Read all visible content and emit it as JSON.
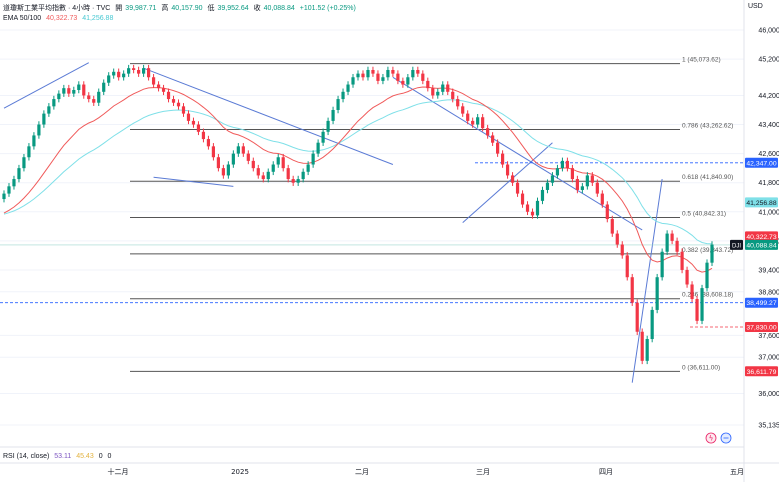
{
  "header": {
    "symbol": "道瓊斯工業平均指數 · 4小時 · TVC",
    "open_label": "開",
    "open": "39,987.71",
    "high_label": "高",
    "high": "40,157.90",
    "low_label": "低",
    "low": "39,952.64",
    "close_label": "收",
    "close": "40,088.84",
    "change": "+101.52 (+0.25%)",
    "ema_label": "EMA 50/100",
    "ema50": "40,322.73",
    "ema100": "41,256.88",
    "currency": "USD",
    "rsi_label": "RSI (14, close)",
    "rsi_value": "53.11",
    "rsi_ma": "45.43",
    "rsi_zero1": "0",
    "rsi_zero2": "0"
  },
  "colors": {
    "up": "#089981",
    "down": "#f23645",
    "ema50": "#f05a5a",
    "ema100": "#7fe0e8",
    "trend": "#5b7bd5",
    "fib": "#555555",
    "badge_dark": "#131722"
  },
  "chart_data": {
    "type": "candlestick",
    "title": "道瓊斯工業平均指數 · 4小時 · TVC",
    "y_ticks": [
      "46,000.00",
      "45,200.00",
      "44,200.00",
      "43,400.00",
      "42,600.00",
      "41,800.00",
      "41,000.00",
      "40,200.00",
      "39,400.00",
      "38,800.00",
      "37,600.00",
      "37,000.00",
      "36,000.00",
      "35,135.00"
    ],
    "x_ticks": [
      "十二月",
      "2025",
      "二月",
      "三月",
      "四月",
      "五月"
    ],
    "ylim": [
      35135,
      46000
    ],
    "fib_levels": [
      {
        "label": "1 (45,073.62)",
        "value": 45073.62
      },
      {
        "label": "0.786 (43,262.62)",
        "value": 43262.62
      },
      {
        "label": "0.618 (41,840.90)",
        "value": 41840.9
      },
      {
        "label": "0.5 (40,842.31)",
        "value": 40842.31
      },
      {
        "label": "0.382 (39,843.72)",
        "value": 39843.72
      },
      {
        "label": "0.236 (38,608.18)",
        "value": 38608.18
      },
      {
        "label": "0 (36,611.00)",
        "value": 36611.0
      }
    ],
    "price_badges": [
      {
        "text": "42,347.00",
        "value": 42347.0,
        "color": "#2962ff"
      },
      {
        "text": "41,256.88",
        "value": 41256.88,
        "color": "#7fe0e8"
      },
      {
        "text": "40,322.73",
        "value": 40322.73,
        "color": "#f23645"
      },
      {
        "text": "40,088.84",
        "value": 40088.84,
        "color": "#089981"
      },
      {
        "text": "38,499.27",
        "value": 38499.27,
        "color": "#2962ff"
      },
      {
        "text": "37,830.00",
        "value": 37830.0,
        "color": "#f23645"
      },
      {
        "text": "36,611.79",
        "value": 36611.79,
        "color": "#f23645"
      }
    ],
    "dj_label": "DJI",
    "ema50_series_name": "EMA 50",
    "ema100_series_name": "EMA 100",
    "closes": [
      41500,
      41700,
      41900,
      42200,
      42500,
      42800,
      43100,
      43400,
      43700,
      43900,
      44100,
      44250,
      44400,
      44250,
      44350,
      44500,
      44200,
      44100,
      44000,
      44300,
      44550,
      44750,
      44850,
      44700,
      44800,
      44950,
      44900,
      44800,
      44950,
      44700,
      44500,
      44400,
      44300,
      44100,
      44000,
      43900,
      43700,
      43500,
      43400,
      43200,
      43000,
      42800,
      42500,
      42200,
      42000,
      42300,
      42600,
      42800,
      42600,
      42400,
      42200,
      42000,
      41900,
      42100,
      42300,
      42500,
      42200,
      41900,
      41800,
      41900,
      42100,
      42300,
      42600,
      42900,
      43200,
      43500,
      43800,
      44100,
      44300,
      44500,
      44700,
      44800,
      44700,
      44900,
      44800,
      44600,
      44700,
      44900,
      44800,
      44600,
      44500,
      44700,
      44900,
      44800,
      44600,
      44400,
      44200,
      44300,
      44500,
      44300,
      44100,
      43900,
      43700,
      43500,
      43400,
      43600,
      43300,
      43100,
      42900,
      42600,
      42300,
      42000,
      41800,
      41500,
      41200,
      41000,
      40900,
      41300,
      41600,
      41800,
      42000,
      42200,
      42400,
      42200,
      41900,
      41600,
      41700,
      42000,
      41800,
      41500,
      41200,
      40800,
      40400,
      40100,
      39800,
      39200,
      38500,
      37700,
      36900,
      37500,
      38300,
      39200,
      39900,
      40400,
      40200,
      39900,
      39400,
      39000,
      38600,
      38000,
      38900,
      39600,
      40100
    ]
  }
}
